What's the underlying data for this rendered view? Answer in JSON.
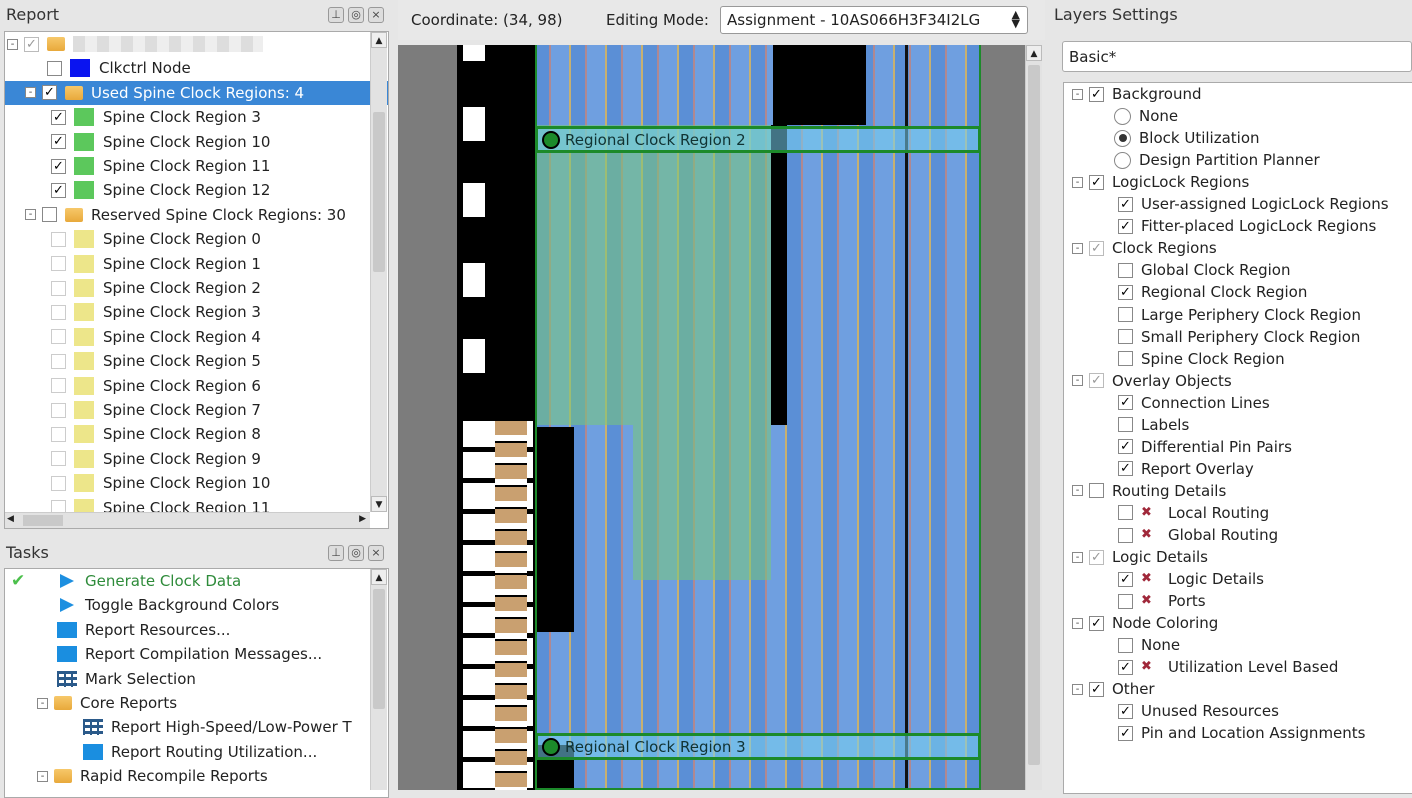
{
  "report": {
    "title": "Report",
    "rows": [
      {
        "label": "",
        "level": 0,
        "cb": "gray",
        "icon": "folder",
        "expand": "-"
      },
      {
        "label": "Clkctrl Node",
        "level": 1,
        "cb": "off",
        "swatch": "#0a14f0"
      },
      {
        "label": "Used Spine Clock Regions: 4",
        "level": 1,
        "cb": "on",
        "icon": "folder",
        "expand": "-",
        "selected": true
      },
      {
        "label": "Spine Clock Region 3",
        "level": 2,
        "cb": "on",
        "swatch": "#5cc85c"
      },
      {
        "label": "Spine Clock Region 10",
        "level": 2,
        "cb": "on",
        "swatch": "#5cc85c"
      },
      {
        "label": "Spine Clock Region 11",
        "level": 2,
        "cb": "on",
        "swatch": "#5cc85c"
      },
      {
        "label": "Spine Clock Region 12",
        "level": 2,
        "cb": "on",
        "swatch": "#5cc85c"
      },
      {
        "label": "Reserved Spine Clock Regions: 30",
        "level": 1,
        "cb": "off",
        "icon": "folder",
        "expand": "-"
      },
      {
        "label": "Spine Clock Region 0",
        "level": 2,
        "cb": "light",
        "swatch": "#ede68a"
      },
      {
        "label": "Spine Clock Region 1",
        "level": 2,
        "cb": "light",
        "swatch": "#ede68a"
      },
      {
        "label": "Spine Clock Region 2",
        "level": 2,
        "cb": "light",
        "swatch": "#ede68a"
      },
      {
        "label": "Spine Clock Region 3",
        "level": 2,
        "cb": "light",
        "swatch": "#ede68a"
      },
      {
        "label": "Spine Clock Region 4",
        "level": 2,
        "cb": "light",
        "swatch": "#ede68a"
      },
      {
        "label": "Spine Clock Region 5",
        "level": 2,
        "cb": "light",
        "swatch": "#ede68a"
      },
      {
        "label": "Spine Clock Region 6",
        "level": 2,
        "cb": "light",
        "swatch": "#ede68a"
      },
      {
        "label": "Spine Clock Region 7",
        "level": 2,
        "cb": "light",
        "swatch": "#ede68a"
      },
      {
        "label": "Spine Clock Region 8",
        "level": 2,
        "cb": "light",
        "swatch": "#ede68a"
      },
      {
        "label": "Spine Clock Region 9",
        "level": 2,
        "cb": "light",
        "swatch": "#ede68a"
      },
      {
        "label": "Spine Clock Region 10",
        "level": 2,
        "cb": "light",
        "swatch": "#ede68a"
      },
      {
        "label": "Spine Clock Region 11",
        "level": 2,
        "cb": "light",
        "swatch": "#ede68a"
      }
    ]
  },
  "tasks": {
    "title": "Tasks",
    "rows": [
      {
        "label": "Generate Clock Data",
        "level": 1,
        "icon": "play",
        "done": true,
        "color": "#2e8b3a"
      },
      {
        "label": "Toggle Background Colors",
        "level": 1,
        "icon": "play"
      },
      {
        "label": "Report Resources...",
        "level": 1,
        "icon": "report"
      },
      {
        "label": "Report Compilation Messages...",
        "level": 1,
        "icon": "report"
      },
      {
        "label": "Mark Selection",
        "level": 1,
        "icon": "table"
      },
      {
        "label": "Core Reports",
        "level": 1,
        "icon": "folder",
        "expand": "-"
      },
      {
        "label": "Report High-Speed/Low-Power T",
        "level": 2,
        "icon": "table"
      },
      {
        "label": "Report Routing Utilization...",
        "level": 2,
        "icon": "report"
      },
      {
        "label": "Rapid Recompile Reports",
        "level": 1,
        "icon": "folder",
        "expand": "-"
      }
    ]
  },
  "toolbar": {
    "coordinate_label": "Coordinate: (34, 98)",
    "editing_mode_label": "Editing Mode:",
    "editing_mode_value": "Assignment - 10AS066H3F34I2LG"
  },
  "canvas": {
    "region_labels": [
      "Regional Clock Region 2",
      "Regional Clock Region 3"
    ]
  },
  "layers": {
    "title": "Layers Settings",
    "preset": "Basic*",
    "rows": [
      {
        "label": "Background",
        "level": 0,
        "cb": "on",
        "expand": "-"
      },
      {
        "label": "None",
        "level": 1,
        "radio": "off"
      },
      {
        "label": "Block Utilization",
        "level": 1,
        "radio": "on"
      },
      {
        "label": "Design Partition Planner",
        "level": 1,
        "radio": "off"
      },
      {
        "label": "LogicLock Regions",
        "level": 0,
        "cb": "on",
        "expand": "-"
      },
      {
        "label": "User-assigned LogicLock Regions",
        "level": 1,
        "cb": "on"
      },
      {
        "label": "Fitter-placed LogicLock Regions",
        "level": 1,
        "cb": "on"
      },
      {
        "label": "Clock Regions",
        "level": 0,
        "cb": "gray",
        "expand": "-"
      },
      {
        "label": "Global Clock Region",
        "level": 1,
        "cb": "off"
      },
      {
        "label": "Regional Clock Region",
        "level": 1,
        "cb": "on"
      },
      {
        "label": "Large Periphery Clock Region",
        "level": 1,
        "cb": "off"
      },
      {
        "label": "Small Periphery Clock Region",
        "level": 1,
        "cb": "off"
      },
      {
        "label": "Spine Clock Region",
        "level": 1,
        "cb": "off"
      },
      {
        "label": "Overlay Objects",
        "level": 0,
        "cb": "gray",
        "expand": "-"
      },
      {
        "label": "Connection Lines",
        "level": 1,
        "cb": "on"
      },
      {
        "label": "Labels",
        "level": 1,
        "cb": "off"
      },
      {
        "label": "Differential Pin Pairs",
        "level": 1,
        "cb": "on"
      },
      {
        "label": "Report Overlay",
        "level": 1,
        "cb": "on"
      },
      {
        "label": "Routing Details",
        "level": 0,
        "cb": "off",
        "expand": "-"
      },
      {
        "label": "Local Routing",
        "level": 1,
        "cb": "off",
        "bug": true
      },
      {
        "label": "Global Routing",
        "level": 1,
        "cb": "off",
        "bug": true
      },
      {
        "label": "Logic Details",
        "level": 0,
        "cb": "gray",
        "expand": "-"
      },
      {
        "label": "Logic Details",
        "level": 1,
        "cb": "on",
        "bug": true
      },
      {
        "label": "Ports",
        "level": 1,
        "cb": "off",
        "bug": true
      },
      {
        "label": "Node Coloring",
        "level": 0,
        "cb": "on",
        "expand": "-"
      },
      {
        "label": "None",
        "level": 1,
        "cb": "off"
      },
      {
        "label": "Utilization Level Based",
        "level": 1,
        "cb": "on",
        "bug": true
      },
      {
        "label": "Other",
        "level": 0,
        "cb": "on",
        "expand": "-"
      },
      {
        "label": "Unused Resources",
        "level": 1,
        "cb": "on"
      },
      {
        "label": "Pin and Location Assignments",
        "level": 1,
        "cb": "on"
      }
    ]
  },
  "colors": {
    "selection": "#3a87d6",
    "used_region": "#5cc85c",
    "reserved_region": "#ede68a",
    "clkctrl": "#0a14f0",
    "fabric": "#5b8fd6"
  }
}
